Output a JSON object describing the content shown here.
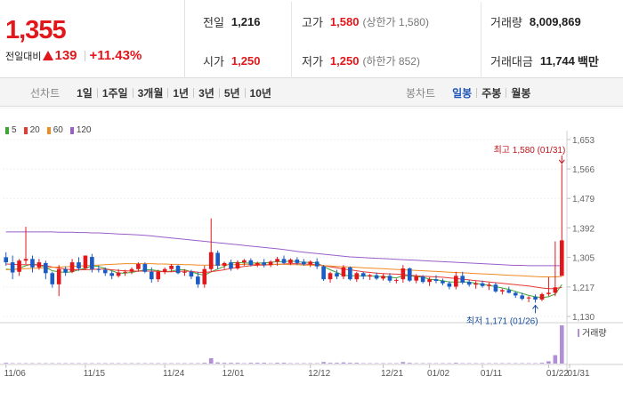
{
  "quote": {
    "price": "1,355",
    "change_label": "전일대비",
    "change_amount": "139",
    "change_percent": "+11.43%",
    "colors": {
      "up": "#e2171b",
      "down": "#1a5bc6"
    },
    "stats": {
      "prev_close": {
        "label": "전일",
        "value": "1,216"
      },
      "high": {
        "label": "고가",
        "value": "1,580",
        "note": "(상한가 1,580)"
      },
      "volume": {
        "label": "거래량",
        "value": "8,009,869"
      },
      "open": {
        "label": "시가",
        "value": "1,250"
      },
      "low": {
        "label": "저가",
        "value": "1,250",
        "note": "(하한가 852)"
      },
      "trade_value": {
        "label": "거래대금",
        "value": "11,744",
        "unit": "백만"
      }
    }
  },
  "toolbar": {
    "line_chart_label": "선차트",
    "periods": [
      "1일",
      "1주일",
      "3개월",
      "1년",
      "3년",
      "5년",
      "10년"
    ],
    "candle_chart_label": "봉차트",
    "candle_periods": [
      "일봉",
      "주봉",
      "월봉"
    ],
    "active_candle_period": "일봉"
  },
  "chart_data": {
    "type": "candlestick",
    "legend": [
      {
        "name": "5",
        "color": "#3fa535"
      },
      {
        "name": "20",
        "color": "#e53935"
      },
      {
        "name": "60",
        "color": "#f08a24"
      },
      {
        "name": "120",
        "color": "#9a5fc9"
      }
    ],
    "y_ticks": [
      "1,653",
      "1,566",
      "1,479",
      "1,392",
      "1,305",
      "1,217",
      "1,130"
    ],
    "ylim": [
      1130,
      1653
    ],
    "x_ticks": [
      "11/06",
      "11/15",
      "11/24",
      "12/01",
      "12/12",
      "12/21",
      "01/02",
      "01/11",
      "01/22",
      "01/31"
    ],
    "volume_label": "거래량",
    "annotations": {
      "high": {
        "text": "최고 1,580 (01/31)",
        "value": 1580
      },
      "low": {
        "text": "최저 1,171 (01/26)",
        "value": 1171
      }
    },
    "candles": [
      [
        1305,
        1320,
        1280,
        1290
      ],
      [
        1290,
        1310,
        1240,
        1260
      ],
      [
        1262,
        1300,
        1250,
        1295
      ],
      [
        1295,
        1395,
        1285,
        1300
      ],
      [
        1300,
        1310,
        1260,
        1275
      ],
      [
        1275,
        1300,
        1268,
        1290
      ],
      [
        1288,
        1295,
        1240,
        1258
      ],
      [
        1258,
        1262,
        1215,
        1225
      ],
      [
        1225,
        1282,
        1190,
        1270
      ],
      [
        1270,
        1278,
        1250,
        1260
      ],
      [
        1262,
        1300,
        1258,
        1290
      ],
      [
        1290,
        1305,
        1265,
        1272
      ],
      [
        1272,
        1310,
        1268,
        1310
      ],
      [
        1306,
        1315,
        1260,
        1270
      ],
      [
        1270,
        1280,
        1260,
        1268
      ],
      [
        1268,
        1275,
        1250,
        1258
      ],
      [
        1258,
        1265,
        1240,
        1250
      ],
      [
        1250,
        1270,
        1245,
        1260
      ],
      [
        1260,
        1268,
        1250,
        1262
      ],
      [
        1262,
        1275,
        1255,
        1270
      ],
      [
        1270,
        1290,
        1262,
        1285
      ],
      [
        1285,
        1290,
        1258,
        1262
      ],
      [
        1262,
        1275,
        1230,
        1240
      ],
      [
        1240,
        1268,
        1232,
        1262
      ],
      [
        1262,
        1275,
        1255,
        1270
      ],
      [
        1270,
        1285,
        1262,
        1280
      ],
      [
        1280,
        1282,
        1255,
        1258
      ],
      [
        1260,
        1270,
        1250,
        1262
      ],
      [
        1262,
        1268,
        1240,
        1248
      ],
      [
        1248,
        1262,
        1215,
        1225
      ],
      [
        1225,
        1280,
        1215,
        1270
      ],
      [
        1270,
        1420,
        1262,
        1320
      ],
      [
        1318,
        1325,
        1270,
        1280
      ],
      [
        1280,
        1292,
        1270,
        1288
      ],
      [
        1290,
        1298,
        1265,
        1272
      ],
      [
        1272,
        1296,
        1268,
        1290
      ],
      [
        1290,
        1300,
        1280,
        1296
      ],
      [
        1296,
        1302,
        1278,
        1282
      ],
      [
        1282,
        1292,
        1276,
        1288
      ],
      [
        1290,
        1300,
        1275,
        1282
      ],
      [
        1282,
        1296,
        1276,
        1292
      ],
      [
        1292,
        1306,
        1280,
        1300
      ],
      [
        1300,
        1310,
        1284,
        1288
      ],
      [
        1288,
        1302,
        1282,
        1298
      ],
      [
        1298,
        1305,
        1282,
        1288
      ],
      [
        1292,
        1300,
        1280,
        1284
      ],
      [
        1284,
        1296,
        1276,
        1292
      ],
      [
        1292,
        1302,
        1270,
        1278
      ],
      [
        1278,
        1282,
        1235,
        1240
      ],
      [
        1240,
        1262,
        1230,
        1258
      ],
      [
        1258,
        1268,
        1240,
        1248
      ],
      [
        1248,
        1282,
        1240,
        1275
      ],
      [
        1275,
        1278,
        1236,
        1240
      ],
      [
        1240,
        1262,
        1232,
        1258
      ],
      [
        1258,
        1262,
        1240,
        1248
      ],
      [
        1248,
        1256,
        1238,
        1252
      ],
      [
        1252,
        1260,
        1238,
        1242
      ],
      [
        1242,
        1256,
        1236,
        1250
      ],
      [
        1250,
        1258,
        1230,
        1236
      ],
      [
        1236,
        1242,
        1228,
        1238
      ],
      [
        1240,
        1282,
        1230,
        1272
      ],
      [
        1272,
        1275,
        1232,
        1236
      ],
      [
        1236,
        1255,
        1228,
        1248
      ],
      [
        1248,
        1252,
        1228,
        1232
      ],
      [
        1232,
        1246,
        1220,
        1240
      ],
      [
        1240,
        1252,
        1228,
        1235
      ],
      [
        1235,
        1242,
        1222,
        1228
      ],
      [
        1228,
        1234,
        1210,
        1218
      ],
      [
        1218,
        1262,
        1210,
        1250
      ],
      [
        1250,
        1262,
        1225,
        1230
      ],
      [
        1232,
        1238,
        1218,
        1224
      ],
      [
        1224,
        1234,
        1212,
        1228
      ],
      [
        1228,
        1236,
        1215,
        1220
      ],
      [
        1220,
        1230,
        1208,
        1224
      ],
      [
        1224,
        1230,
        1200,
        1204
      ],
      [
        1204,
        1212,
        1195,
        1208
      ],
      [
        1208,
        1218,
        1198,
        1200
      ],
      [
        1200,
        1204,
        1185,
        1192
      ],
      [
        1192,
        1200,
        1178,
        1182
      ],
      [
        1184,
        1190,
        1172,
        1186
      ],
      [
        1188,
        1195,
        1171,
        1180
      ],
      [
        1180,
        1200,
        1175,
        1196
      ],
      [
        1196,
        1246,
        1190,
        1200
      ],
      [
        1200,
        1352,
        1190,
        1216
      ],
      [
        1250,
        1580,
        1250,
        1355
      ]
    ],
    "ma": {
      "5": [
        1270,
        1268,
        1272,
        1280,
        1285,
        1282,
        1275,
        1265,
        1262,
        1260,
        1262,
        1268,
        1272,
        1280,
        1278,
        1272,
        1265,
        1258,
        1258,
        1260,
        1264,
        1268,
        1268,
        1265,
        1262,
        1264,
        1268,
        1268,
        1262,
        1256,
        1252,
        1262,
        1270,
        1278,
        1288,
        1290,
        1288,
        1288,
        1288,
        1288,
        1290,
        1292,
        1292,
        1294,
        1292,
        1290,
        1290,
        1288,
        1278,
        1268,
        1260,
        1252,
        1250,
        1250,
        1250,
        1250,
        1248,
        1248,
        1246,
        1244,
        1250,
        1250,
        1248,
        1246,
        1240,
        1238,
        1236,
        1232,
        1232,
        1232,
        1232,
        1228,
        1225,
        1222,
        1218,
        1214,
        1210,
        1204,
        1198,
        1192,
        1188,
        1186,
        1188,
        1196,
        1224
      ],
      "20": [
        1285,
        1284,
        1283,
        1283,
        1283,
        1282,
        1280,
        1276,
        1273,
        1270,
        1268,
        1268,
        1268,
        1269,
        1270,
        1270,
        1268,
        1266,
        1265,
        1264,
        1264,
        1264,
        1264,
        1263,
        1262,
        1262,
        1263,
        1264,
        1263,
        1261,
        1260,
        1262,
        1265,
        1268,
        1272,
        1275,
        1278,
        1280,
        1282,
        1282,
        1283,
        1284,
        1285,
        1286,
        1286,
        1285,
        1284,
        1283,
        1280,
        1277,
        1274,
        1270,
        1268,
        1265,
        1262,
        1260,
        1258,
        1257,
        1256,
        1255,
        1254,
        1252,
        1250,
        1249,
        1248,
        1247,
        1246,
        1244,
        1242,
        1240,
        1238,
        1236,
        1234,
        1232,
        1230,
        1228,
        1226,
        1224,
        1222,
        1220,
        1217,
        1214,
        1212,
        1212,
        1216
      ],
      "60": [
        1268,
        1269,
        1270,
        1271,
        1272,
        1273,
        1274,
        1275,
        1276,
        1277,
        1278,
        1279,
        1280,
        1281,
        1282,
        1283,
        1284,
        1285,
        1286,
        1286,
        1286,
        1286,
        1286,
        1285,
        1285,
        1284,
        1284,
        1283,
        1283,
        1282,
        1282,
        1282,
        1282,
        1283,
        1283,
        1283,
        1284,
        1284,
        1284,
        1284,
        1284,
        1284,
        1284,
        1283,
        1283,
        1282,
        1282,
        1281,
        1280,
        1279,
        1278,
        1277,
        1276,
        1275,
        1274,
        1273,
        1272,
        1271,
        1270,
        1269,
        1268,
        1267,
        1266,
        1265,
        1264,
        1263,
        1262,
        1261,
        1260,
        1259,
        1258,
        1257,
        1256,
        1255,
        1254,
        1253,
        1252,
        1251,
        1250,
        1249,
        1248,
        1247,
        1247,
        1247,
        1248
      ],
      "120": [
        1380,
        1380,
        1380,
        1380,
        1380,
        1380,
        1380,
        1380,
        1379,
        1379,
        1379,
        1378,
        1378,
        1377,
        1377,
        1376,
        1375,
        1374,
        1373,
        1372,
        1371,
        1370,
        1368,
        1366,
        1364,
        1362,
        1360,
        1358,
        1356,
        1354,
        1352,
        1350,
        1348,
        1346,
        1344,
        1342,
        1340,
        1338,
        1336,
        1334,
        1332,
        1330,
        1328,
        1325,
        1322,
        1320,
        1318,
        1316,
        1314,
        1312,
        1310,
        1308,
        1306,
        1305,
        1304,
        1303,
        1302,
        1301,
        1300,
        1299,
        1298,
        1297,
        1296,
        1295,
        1294,
        1293,
        1292,
        1291,
        1290,
        1289,
        1288,
        1287,
        1286,
        1285,
        1284,
        1283,
        1282,
        1281,
        1281,
        1280,
        1280,
        1280,
        1280,
        1280,
        1280
      ]
    },
    "volume": [
      2,
      1,
      1,
      1,
      1,
      1,
      1,
      1,
      1,
      1,
      1,
      1,
      1,
      1,
      1,
      1,
      1,
      1,
      1,
      1,
      1,
      1,
      1,
      1,
      1,
      1,
      1,
      1,
      1,
      1,
      2,
      14,
      3,
      2,
      2,
      2,
      1,
      2,
      2,
      2,
      1,
      2,
      2,
      1,
      1,
      1,
      1,
      1,
      4,
      2,
      2,
      3,
      2,
      2,
      1,
      1,
      1,
      1,
      1,
      1,
      4,
      2,
      1,
      1,
      1,
      1,
      1,
      1,
      2,
      1,
      1,
      1,
      1,
      1,
      1,
      1,
      1,
      1,
      1,
      1,
      1,
      2,
      6,
      22,
      100
    ]
  }
}
